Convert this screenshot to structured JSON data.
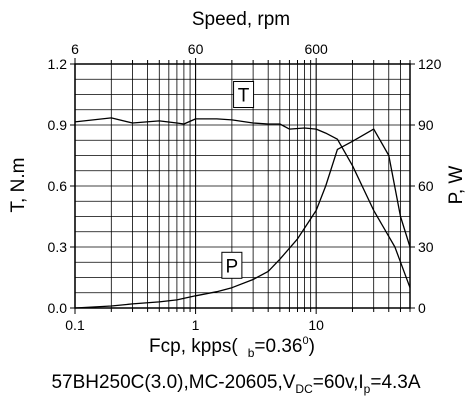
{
  "chart_data": {
    "type": "line",
    "title": "Speed, rpm",
    "top_ticks": [
      "6",
      "60",
      "600"
    ],
    "xlabel": {
      "main": "Fcp, kpps(",
      "sub": "b",
      "value": "=0.36",
      "sup": "0",
      "close": ")"
    },
    "ylabel_left": "T, N.m",
    "ylabel_right": "P, W",
    "x_scale": "log",
    "xlim": [
      0.1,
      60
    ],
    "ylim_left": [
      0,
      1.2
    ],
    "ylim_right": [
      0,
      120
    ],
    "x_ticks": [
      "0.1",
      "1",
      "10"
    ],
    "y_ticks_left": [
      "0.0",
      "0.3",
      "0.6",
      "0.9",
      "1.2"
    ],
    "y_ticks_right": [
      "0",
      "30",
      "60",
      "90",
      "120"
    ],
    "grid": true,
    "series": [
      {
        "name": "T",
        "axis": "left",
        "x": [
          0.1,
          0.2,
          0.3,
          0.5,
          0.7,
          0.8,
          1.0,
          1.5,
          2.0,
          3.0,
          4.0,
          5.0,
          6.0,
          8.0,
          10.0,
          12.0,
          15.0,
          20.0,
          30.0,
          45.0,
          60.0
        ],
        "y": [
          0.915,
          0.935,
          0.91,
          0.92,
          0.91,
          0.905,
          0.93,
          0.93,
          0.925,
          0.91,
          0.905,
          0.905,
          0.88,
          0.885,
          0.88,
          0.86,
          0.83,
          0.7,
          0.48,
          0.3,
          0.1
        ]
      },
      {
        "name": "P",
        "axis": "right",
        "x": [
          0.1,
          0.2,
          0.3,
          0.5,
          0.7,
          1.0,
          1.5,
          2.0,
          3.0,
          4.0,
          5.0,
          7.0,
          10.0,
          12.0,
          15.0,
          20.0,
          30.0,
          40.0,
          50.0,
          60.0
        ],
        "y": [
          0,
          1,
          2,
          3,
          4,
          6,
          8,
          10,
          14,
          18,
          24,
          34,
          48,
          60,
          78,
          82,
          88,
          75,
          45,
          30
        ]
      }
    ],
    "caption": {
      "part1": "57BH250C(3.0),MC-20605,V",
      "sub1": "DC",
      "part2": "=60v,I",
      "sub2": "p",
      "part3": "=4.3A"
    }
  }
}
